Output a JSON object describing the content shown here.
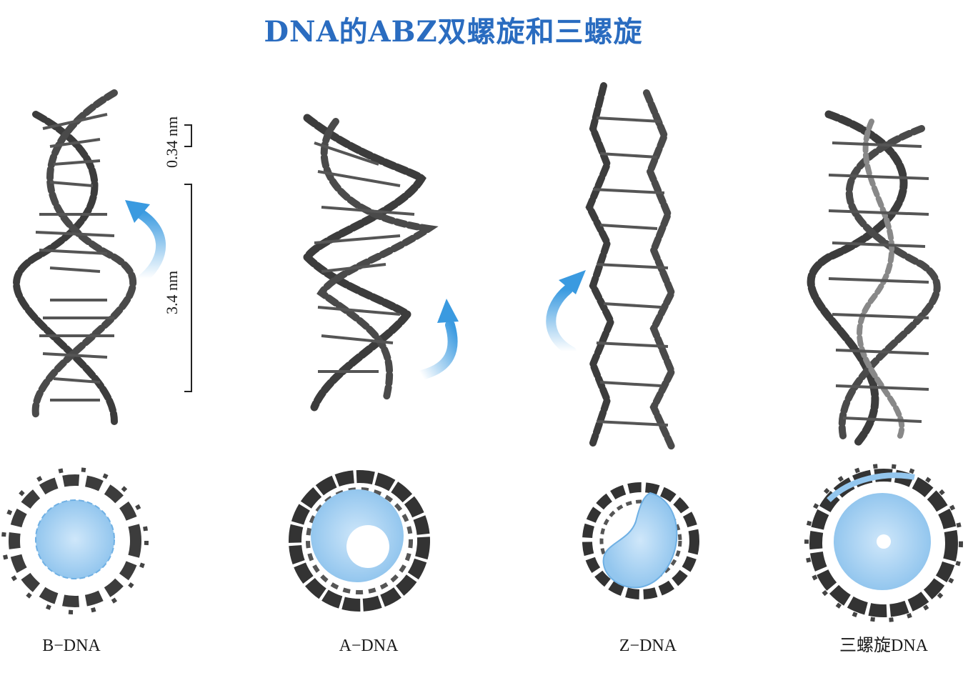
{
  "title": "DNA的ABZ双螺旋和三螺旋",
  "scale": {
    "minor": "0.34 nm",
    "major": "3.4 nm"
  },
  "colors": {
    "title": "#2a6cc0",
    "arrow": "#3a9ae0",
    "fill": "#a9d2f2",
    "strand": "#3c3c3c"
  },
  "forms": [
    {
      "name": "B-DNA",
      "label": "B−DNA"
    },
    {
      "name": "A-DNA",
      "label": "A−DNA"
    },
    {
      "name": "Z-DNA",
      "label": "Z−DNA"
    },
    {
      "name": "triple-DNA",
      "label": "三螺旋DNA"
    }
  ]
}
